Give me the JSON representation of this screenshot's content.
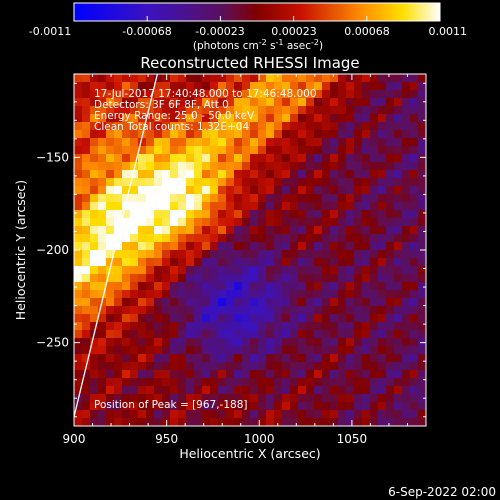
{
  "colorbar": {
    "ticks": [
      "-0.0011",
      "-0.00068",
      "-0.00023",
      "0.00023",
      "0.00068",
      "0.0011"
    ],
    "unit_parts": {
      "a": "(photons cm",
      "b": "-2",
      "c": " s",
      "d": "-1",
      "e": " asec",
      "f": "-2",
      "g": ")"
    }
  },
  "annotations": {
    "time_range": "17-Jul-2017 17:40:48.000 to 17:46:48.000",
    "detectors": "Detectors: 3F 6F 8F, Att 0",
    "energy": "Energy Range: 25.0 - 50.0 keV",
    "clean": "Clean    Total counts: 1.32E+04",
    "peak": "Position of Peak = [967,-188]"
  },
  "footer": {
    "date": "6-Sep-2022 02:00"
  },
  "chart_data": {
    "type": "heatmap",
    "title": "Reconstructed RHESSI Image",
    "xlabel": "Heliocentric X (arcsec)",
    "ylabel": "Heliocentric Y (arcsec)",
    "xlim": [
      900,
      1090
    ],
    "ylim": [
      -295,
      -105
    ],
    "x_ticks": [
      900,
      950,
      1000,
      1050
    ],
    "y_ticks": [
      -150,
      -200,
      -250
    ],
    "x_tick_labels": [
      "900",
      "950",
      "1000",
      "1050"
    ],
    "y_tick_labels": [
      "−150",
      "−200",
      "−250"
    ],
    "color_range": [
      -0.0011,
      0.0011
    ],
    "colormap": "blue-purple-red-yellow-white",
    "peak_position": [
      967,
      -188
    ],
    "limb_line": [
      [
        900,
        -290
      ],
      [
        945,
        -105
      ]
    ]
  }
}
